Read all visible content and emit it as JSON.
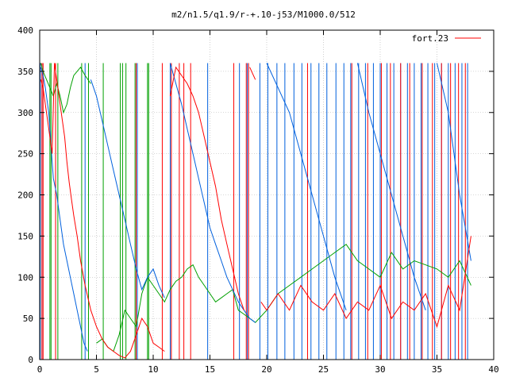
{
  "chart_data": {
    "type": "line",
    "title": "m2/n1.5/q1.9/r-+.10-j53/M1000.0/512",
    "xlabel": "",
    "ylabel": "",
    "xlim": [
      0,
      40
    ],
    "ylim": [
      0,
      400
    ],
    "x_ticks": [
      "0",
      "5",
      "10",
      "15",
      "20",
      "25",
      "30",
      "35",
      "40"
    ],
    "y_ticks": [
      "0",
      "50",
      "100",
      "150",
      "200",
      "250",
      "300",
      "350",
      "400"
    ],
    "grid": true,
    "legend_position": "top-right",
    "legend": [
      {
        "label": "fort.23",
        "color": "#ff0000"
      }
    ],
    "series": [
      {
        "name": "fort.23",
        "color": "#ff0000",
        "x": [
          0.1,
          0.3,
          0.5,
          0.7,
          0.9,
          1.1,
          1.3,
          1.4,
          1.6,
          1.8,
          2.0,
          2.2,
          2.4,
          2.6,
          2.8,
          3.0,
          3.3,
          3.6,
          4.0,
          4.5,
          5.0,
          5.5,
          6.0,
          6.5,
          7.0,
          7.5,
          8.0,
          8.5,
          9.0,
          9.5,
          10.0,
          10.5,
          11.0,
          11.5,
          12.0,
          12.5,
          13.0,
          13.5,
          14.0,
          14.5,
          15.0,
          15.5,
          16.0,
          16.5,
          17.0,
          17.5,
          18.0,
          18.5,
          19.0,
          19.5,
          20.0,
          21.0,
          22.0,
          23.0,
          24.0,
          25.0,
          26.0,
          27.0,
          28.0,
          29.0,
          30.0,
          31.0,
          32.0,
          33.0,
          34.0,
          35.0,
          36.0,
          37.0,
          38.0
        ],
        "y": [
          340,
          330,
          310,
          290,
          270,
          250,
          360,
          350,
          330,
          310,
          290,
          270,
          240,
          215,
          195,
          175,
          150,
          120,
          90,
          60,
          40,
          25,
          15,
          10,
          5,
          2,
          10,
          30,
          50,
          40,
          20,
          15,
          10,
          320,
          355,
          345,
          335,
          320,
          300,
          270,
          240,
          210,
          170,
          140,
          110,
          80,
          60,
          355,
          340,
          70,
          60,
          80,
          60,
          90,
          70,
          60,
          80,
          50,
          70,
          60,
          90,
          50,
          70,
          60,
          80,
          40,
          90,
          60,
          150
        ]
      },
      {
        "name": "",
        "color": "#0060dd",
        "x": [
          0.1,
          0.3,
          0.5,
          0.8,
          1.0,
          1.2,
          1.5,
          1.8,
          2.1,
          2.4,
          2.7,
          3.0,
          3.3,
          3.6,
          3.9,
          4.2,
          4.5,
          5.0,
          5.5,
          6.0,
          6.5,
          7.0,
          7.5,
          8.0,
          8.5,
          9.0,
          9.5,
          10.0,
          10.5,
          11.0,
          11.5,
          12.0,
          12.5,
          13.0,
          13.5,
          14.0,
          14.5,
          15.0,
          15.5,
          16.0,
          16.5,
          17.0,
          17.5,
          18.0,
          18.5,
          19.0,
          20.0,
          21.0,
          22.0,
          23.0,
          24.0,
          25.0,
          26.0,
          27.0,
          28.0,
          29.0,
          30.0,
          31.0,
          32.0,
          33.0,
          34.0,
          35.0,
          36.0,
          37.0,
          38.0
        ],
        "y": [
          355,
          345,
          330,
          300,
          260,
          220,
          200,
          170,
          140,
          120,
          100,
          80,
          60,
          40,
          20,
          10,
          340,
          320,
          290,
          260,
          230,
          200,
          170,
          140,
          110,
          85,
          100,
          110,
          90,
          75,
          360,
          335,
          310,
          280,
          250,
          220,
          190,
          160,
          140,
          120,
          100,
          85,
          70,
          60,
          50,
          45,
          360,
          330,
          300,
          250,
          200,
          150,
          100,
          60,
          360,
          300,
          250,
          200,
          150,
          100,
          60,
          360,
          300,
          200,
          120
        ]
      },
      {
        "name": "",
        "color": "#00a000",
        "x": [
          0.1,
          0.3,
          0.6,
          0.9,
          1.2,
          1.5,
          1.8,
          2.1,
          2.4,
          2.7,
          3.0,
          3.3,
          3.6,
          4.0,
          4.5,
          5.0,
          5.5,
          6.0,
          6.5,
          7.0,
          7.5,
          8.0,
          8.5,
          9.0,
          9.5,
          10.0,
          10.5,
          11.0,
          11.5,
          12.0,
          12.5,
          13.0,
          13.5,
          14.0,
          14.5,
          15.0,
          15.5,
          16.0,
          16.5,
          17.0,
          17.5,
          18.0,
          18.5,
          19.0,
          20.0,
          21.0,
          22.0,
          23.0,
          24.0,
          25.0,
          26.0,
          27.0,
          28.0,
          29.0,
          30.0,
          31.0,
          32.0,
          33.0,
          34.0,
          35.0,
          36.0,
          37.0,
          38.0
        ],
        "y": [
          360,
          350,
          340,
          330,
          320,
          335,
          320,
          300,
          310,
          330,
          345,
          350,
          355,
          345,
          335,
          20,
          25,
          15,
          10,
          30,
          60,
          50,
          40,
          80,
          100,
          90,
          80,
          70,
          85,
          95,
          100,
          110,
          115,
          100,
          90,
          80,
          70,
          75,
          80,
          85,
          60,
          55,
          50,
          45,
          60,
          80,
          90,
          100,
          110,
          120,
          130,
          140,
          120,
          110,
          100,
          130,
          110,
          120,
          115,
          110,
          100,
          120,
          90
        ]
      }
    ],
    "vertical_spikes": {
      "red_x": [
        0.2,
        0.3,
        1.4,
        8.5,
        10.8,
        11.6,
        12.3,
        12.7,
        13.3,
        17.1,
        18.2,
        18.4,
        23.6,
        27.5,
        28.9,
        30.1,
        30.9,
        31.8,
        32.6,
        33.7,
        34.6,
        35.4,
        36.2,
        36.9,
        37.5
      ],
      "blue_x": [
        0.05,
        0.2,
        4.0,
        8.6,
        11.5,
        14.8,
        17.6,
        18.3,
        19.4,
        20.1,
        20.9,
        21.6,
        22.4,
        23.1,
        23.9,
        24.6,
        25.3,
        26.1,
        26.8,
        27.4,
        28.1,
        28.7,
        29.4,
        30.0,
        30.6,
        31.2,
        31.8,
        32.4,
        33.0,
        33.6,
        34.2,
        34.8,
        35.4,
        36.0,
        36.6,
        37.2,
        37.7
      ],
      "green_x": [
        0.9,
        1.0,
        1.6,
        3.7,
        4.3,
        5.6,
        7.1,
        7.3,
        7.6,
        8.4,
        9.5,
        9.6
      ]
    }
  }
}
